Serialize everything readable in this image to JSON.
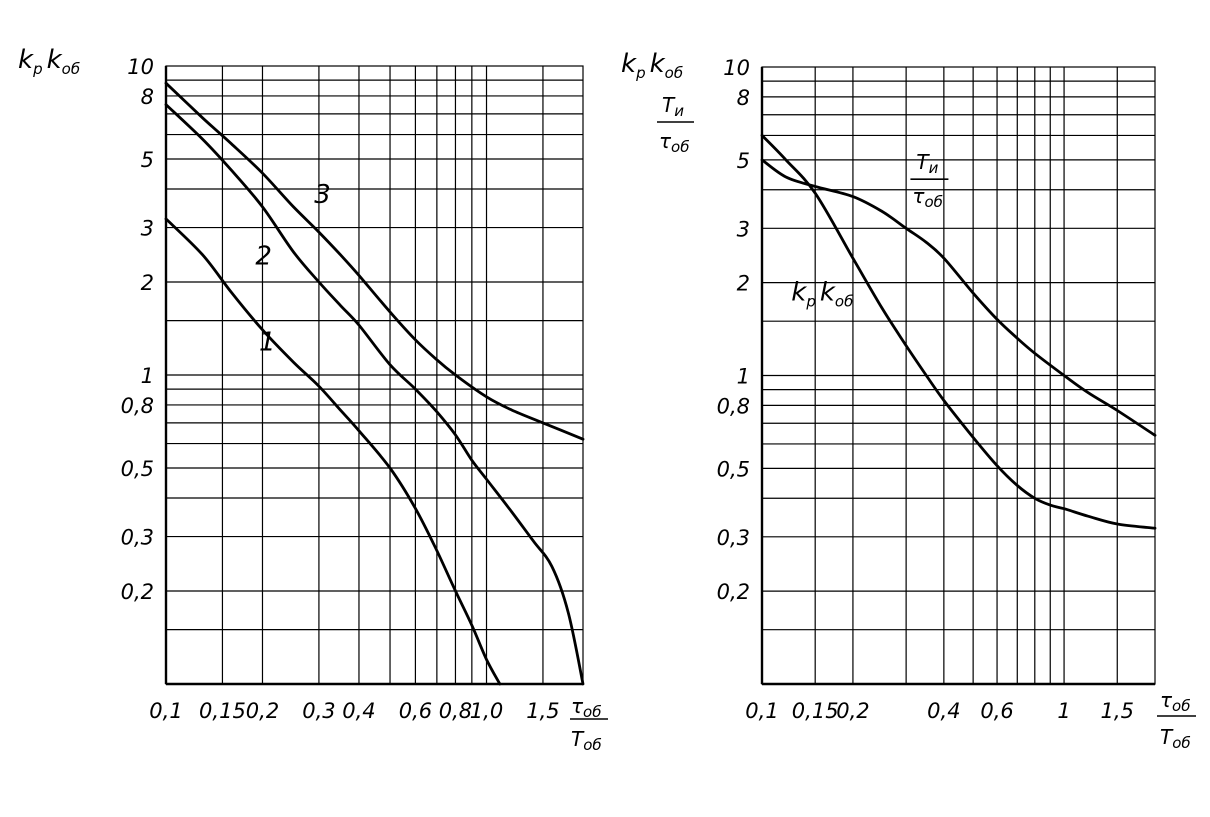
{
  "chart_data": [
    {
      "type": "line",
      "scale": {
        "x": "log",
        "y": "log"
      },
      "xlim": [
        0.1,
        2.0
      ],
      "ylim": [
        0.1,
        10
      ],
      "grid": true,
      "ylabel": {
        "main": "k",
        "sub1": "р",
        "main2": "k",
        "sub2": "об"
      },
      "xlabel": {
        "num": "τ",
        "num_sub": "об",
        "den": "T",
        "den_sub": "об"
      },
      "x_tick_labels": [
        {
          "v": 0.1,
          "t": "0,1"
        },
        {
          "v": 0.15,
          "t": "0,15"
        },
        {
          "v": 0.2,
          "t": "0,2"
        },
        {
          "v": 0.3,
          "t": "0,3"
        },
        {
          "v": 0.4,
          "t": "0,4"
        },
        {
          "v": 0.6,
          "t": "0,6"
        },
        {
          "v": 0.8,
          "t": "0,8"
        },
        {
          "v": 1.0,
          "t": "1,0"
        },
        {
          "v": 1.5,
          "t": "1,5"
        }
      ],
      "y_tick_labels": [
        {
          "v": 10,
          "t": "10"
        },
        {
          "v": 8,
          "t": "8"
        },
        {
          "v": 5,
          "t": "5"
        },
        {
          "v": 3,
          "t": "3"
        },
        {
          "v": 2,
          "t": "2"
        },
        {
          "v": 1,
          "t": "1"
        },
        {
          "v": 0.8,
          "t": "0,8"
        },
        {
          "v": 0.5,
          "t": "0,5"
        },
        {
          "v": 0.3,
          "t": "0,3"
        },
        {
          "v": 0.2,
          "t": "0,2"
        }
      ],
      "x_grid": [
        0.15,
        0.2,
        0.3,
        0.4,
        0.5,
        0.6,
        0.7,
        0.8,
        0.9,
        1.0,
        1.5
      ],
      "y_grid": [
        0.15,
        0.2,
        0.3,
        0.4,
        0.5,
        0.6,
        0.7,
        0.8,
        0.9,
        1.0,
        1.5,
        2,
        3,
        4,
        5,
        6,
        7,
        8,
        9
      ],
      "series": [
        {
          "name": "1",
          "label_at": [
            0.195,
            1.2
          ],
          "x": [
            0.1,
            0.13,
            0.16,
            0.2,
            0.25,
            0.3,
            0.35,
            0.4,
            0.5,
            0.6,
            0.7,
            0.8,
            0.9,
            1.0,
            1.1
          ],
          "y": [
            3.2,
            2.45,
            1.85,
            1.4,
            1.1,
            0.92,
            0.77,
            0.66,
            0.5,
            0.37,
            0.27,
            0.2,
            0.155,
            0.12,
            0.1
          ]
        },
        {
          "name": "2",
          "label_at": [
            0.19,
            2.28
          ],
          "x": [
            0.1,
            0.13,
            0.16,
            0.2,
            0.25,
            0.3,
            0.35,
            0.4,
            0.5,
            0.6,
            0.7,
            0.8,
            0.9,
            1.0,
            1.2,
            1.4,
            1.6,
            1.8,
            2.0
          ],
          "y": [
            7.5,
            5.8,
            4.6,
            3.5,
            2.5,
            2.0,
            1.68,
            1.45,
            1.08,
            0.9,
            0.76,
            0.64,
            0.53,
            0.46,
            0.36,
            0.29,
            0.24,
            0.17,
            0.1
          ]
        },
        {
          "name": "3",
          "label_at": [
            0.29,
            3.6
          ],
          "x": [
            0.1,
            0.13,
            0.16,
            0.2,
            0.25,
            0.3,
            0.35,
            0.4,
            0.5,
            0.6,
            0.7,
            0.8,
            1.0,
            1.2,
            1.5,
            2.0
          ],
          "y": [
            8.8,
            6.8,
            5.6,
            4.5,
            3.5,
            2.9,
            2.45,
            2.1,
            1.6,
            1.3,
            1.12,
            1.0,
            0.85,
            0.77,
            0.7,
            0.62
          ]
        }
      ]
    },
    {
      "type": "line",
      "scale": {
        "x": "log",
        "y": "log"
      },
      "xlim": [
        0.1,
        2.0
      ],
      "ylim": [
        0.1,
        10
      ],
      "grid": true,
      "ylabel": {
        "main": "k",
        "sub1": "р",
        "main2": "k",
        "sub2": "об",
        "frac_num": "T",
        "frac_num_sub": "и",
        "frac_den": "τ",
        "frac_den_sub": "об"
      },
      "xlabel": {
        "num": "τ",
        "num_sub": "об",
        "den": "T",
        "den_sub": "об"
      },
      "x_tick_labels": [
        {
          "v": 0.1,
          "t": "0,1"
        },
        {
          "v": 0.15,
          "t": "0,15"
        },
        {
          "v": 0.2,
          "t": "0,2"
        },
        {
          "v": 0.4,
          "t": "0,4"
        },
        {
          "v": 0.6,
          "t": "0,6"
        },
        {
          "v": 1.0,
          "t": "1"
        },
        {
          "v": 1.5,
          "t": "1,5"
        }
      ],
      "y_tick_labels": [
        {
          "v": 10,
          "t": "10"
        },
        {
          "v": 8,
          "t": "8"
        },
        {
          "v": 5,
          "t": "5"
        },
        {
          "v": 3,
          "t": "3"
        },
        {
          "v": 2,
          "t": "2"
        },
        {
          "v": 1,
          "t": "1"
        },
        {
          "v": 0.8,
          "t": "0,8"
        },
        {
          "v": 0.5,
          "t": "0,5"
        },
        {
          "v": 0.3,
          "t": "0,3"
        },
        {
          "v": 0.2,
          "t": "0,2"
        }
      ],
      "x_grid": [
        0.15,
        0.2,
        0.3,
        0.4,
        0.5,
        0.6,
        0.7,
        0.8,
        0.9,
        1.0,
        1.5
      ],
      "y_grid": [
        0.15,
        0.2,
        0.3,
        0.4,
        0.5,
        0.6,
        0.7,
        0.8,
        0.9,
        1.0,
        1.5,
        2,
        3,
        4,
        5,
        6,
        7,
        8,
        9
      ],
      "series": [
        {
          "name": "T_и/τ_об",
          "label_at": [
            0.31,
            4.2
          ],
          "x": [
            0.1,
            0.12,
            0.15,
            0.2,
            0.25,
            0.3,
            0.35,
            0.4,
            0.5,
            0.6,
            0.7,
            0.8,
            1.0,
            1.2,
            1.5,
            2.0
          ],
          "y": [
            5.0,
            4.4,
            4.1,
            3.8,
            3.4,
            3.0,
            2.7,
            2.4,
            1.85,
            1.52,
            1.32,
            1.18,
            1.0,
            0.88,
            0.77,
            0.64
          ]
        },
        {
          "name": "k_р k_об",
          "label_at": [
            0.125,
            1.75
          ],
          "x": [
            0.1,
            0.12,
            0.15,
            0.2,
            0.25,
            0.3,
            0.35,
            0.4,
            0.5,
            0.6,
            0.7,
            0.8,
            0.9,
            1.0,
            1.2,
            1.5,
            2.0
          ],
          "y": [
            6.0,
            5.0,
            3.9,
            2.4,
            1.65,
            1.25,
            1.0,
            0.83,
            0.63,
            0.51,
            0.44,
            0.4,
            0.38,
            0.37,
            0.35,
            0.33,
            0.32
          ]
        }
      ]
    }
  ]
}
